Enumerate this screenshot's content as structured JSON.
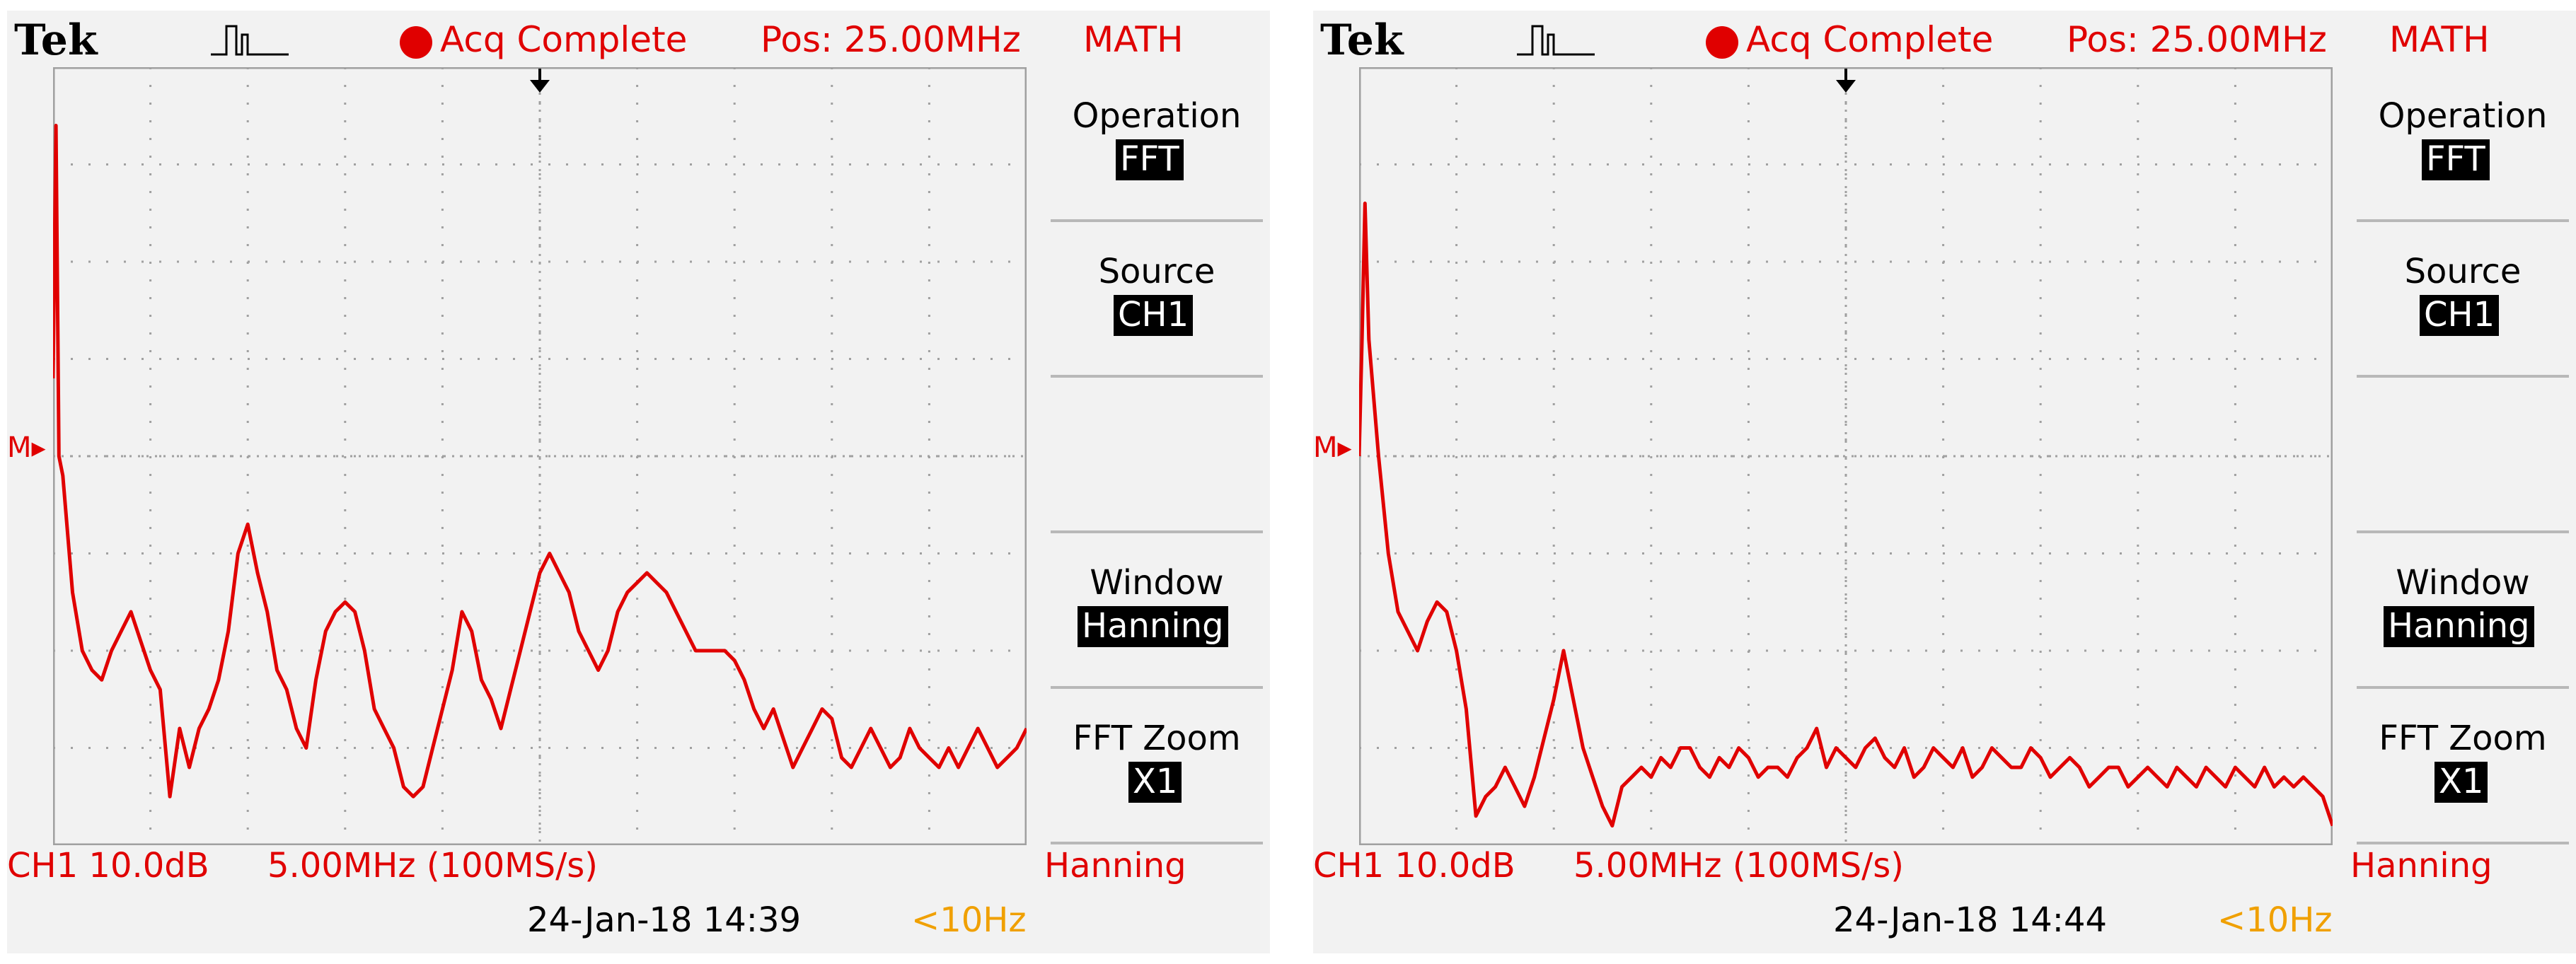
{
  "screens": [
    {
      "brand": "Tek",
      "status": "Acq Complete",
      "position": "Pos: 25.00MHz",
      "menu_title": "MATH",
      "ref_marker": "M",
      "channel_scale": "CH1 10.0dB",
      "timebase": "5.00MHz (100MS/s)",
      "window_label": "Hanning",
      "datetime": "24-Jan-18 14:39",
      "trigger_freq": "<10Hz",
      "menu": [
        {
          "label": "Operation",
          "value": "FFT"
        },
        {
          "label": "Source",
          "value": "CH1"
        },
        {
          "label": "Window",
          "value": "Hanning"
        },
        {
          "label": "FFT Zoom",
          "value": "X1"
        }
      ]
    },
    {
      "brand": "Tek",
      "status": "Acq Complete",
      "position": "Pos: 25.00MHz",
      "menu_title": "MATH",
      "ref_marker": "M",
      "channel_scale": "CH1 10.0dB",
      "timebase": "5.00MHz (100MS/s)",
      "window_label": "Hanning",
      "datetime": "24-Jan-18 14:44",
      "trigger_freq": "<10Hz",
      "menu": [
        {
          "label": "Operation",
          "value": "FFT"
        },
        {
          "label": "Source",
          "value": "CH1"
        },
        {
          "label": "Window",
          "value": "Hanning"
        },
        {
          "label": "FFT Zoom",
          "value": "X1"
        }
      ]
    }
  ],
  "colors": {
    "trace": "#e00000",
    "text_status": "#e00000",
    "trigger_freq": "#f0a000",
    "background": "#f2f2f2",
    "grid": "#a0a0a0"
  },
  "icons": [
    "trigger-pulse-icon",
    "record-dot-icon",
    "trigger-position-marker-icon",
    "math-reference-marker-icon"
  ],
  "chart_data": [
    {
      "type": "line",
      "title": "",
      "xlabel": "",
      "ylabel": "",
      "xlim": [
        0,
        50
      ],
      "ylim": [
        -80,
        0
      ],
      "grid": true,
      "series": [
        {
          "x": [
            0,
            0.15,
            0.3,
            0.5,
            1,
            1.5,
            2,
            2.5,
            3,
            3.5,
            4,
            4.5,
            5,
            5.5,
            6,
            6.5,
            7,
            7.5,
            8,
            8.5,
            9,
            9.5,
            10,
            10.5,
            11,
            11.5,
            12,
            12.5,
            13,
            13.5,
            14,
            14.5,
            15,
            15.5,
            16,
            16.5,
            17,
            17.5,
            18,
            18.5,
            19,
            19.5,
            20,
            20.5,
            21,
            21.5,
            22,
            22.5,
            23,
            23.5,
            24,
            24.5,
            25,
            25.5,
            26,
            26.5,
            27,
            27.5,
            28,
            28.5,
            29,
            29.5,
            30,
            30.5,
            31,
            31.5,
            32,
            32.5,
            33,
            33.5,
            34,
            34.5,
            35,
            35.5,
            36,
            36.5,
            37,
            37.5,
            38,
            38.5,
            39,
            39.5,
            40,
            40.5,
            41,
            41.5,
            42,
            42.5,
            43,
            43.5,
            44,
            44.5,
            45,
            45.5,
            46,
            46.5,
            47,
            47.5,
            48,
            48.5,
            49,
            49.5,
            50
          ],
          "y": [
            -32,
            -6,
            -40,
            -42,
            -54,
            -60,
            -62,
            -63,
            -60,
            -58,
            -56,
            -59,
            -62,
            -64,
            -75,
            -68,
            -72,
            -68,
            -66,
            -63,
            -58,
            -50,
            -47,
            -52,
            -56,
            -62,
            -64,
            -68,
            -70,
            -63,
            -58,
            -56,
            -55,
            -56,
            -60,
            -66,
            -68,
            -70,
            -74,
            -75,
            -74,
            -70,
            -66,
            -62,
            -56,
            -58,
            -63,
            -65,
            -68,
            -64,
            -60,
            -56,
            -52,
            -50,
            -52,
            -54,
            -58,
            -60,
            -62,
            -60,
            -56,
            -54,
            -53,
            -52,
            -53,
            -54,
            -56,
            -58,
            -60,
            -60,
            -60,
            -60,
            -61,
            -63,
            -66,
            -68,
            -66,
            -69,
            -72,
            -70,
            -68,
            -66,
            -67,
            -71,
            -72,
            -70,
            -68,
            -70,
            -72,
            -71,
            -68,
            -70,
            -71,
            -72,
            -70,
            -72,
            -70,
            -68,
            -70,
            -72,
            -71,
            -70,
            -68
          ]
        }
      ]
    },
    {
      "type": "line",
      "title": "",
      "xlabel": "",
      "ylabel": "",
      "xlim": [
        0,
        50
      ],
      "ylim": [
        -80,
        0
      ],
      "grid": true,
      "series": [
        {
          "x": [
            0,
            0.15,
            0.3,
            0.5,
            1,
            1.5,
            2,
            2.5,
            3,
            3.5,
            4,
            4.5,
            5,
            5.5,
            6,
            6.5,
            7,
            7.5,
            8,
            8.5,
            9,
            9.5,
            10,
            10.5,
            11,
            11.5,
            12,
            12.5,
            13,
            13.5,
            14,
            14.5,
            15,
            15.5,
            16,
            16.5,
            17,
            17.5,
            18,
            18.5,
            19,
            19.5,
            20,
            20.5,
            21,
            21.5,
            22,
            22.5,
            23,
            23.5,
            24,
            24.5,
            25,
            25.5,
            26,
            26.5,
            27,
            27.5,
            28,
            28.5,
            29,
            29.5,
            30,
            30.5,
            31,
            31.5,
            32,
            32.5,
            33,
            33.5,
            34,
            34.5,
            35,
            35.5,
            36,
            36.5,
            37,
            37.5,
            38,
            38.5,
            39,
            39.5,
            40,
            40.5,
            41,
            41.5,
            42,
            42.5,
            43,
            43.5,
            44,
            44.5,
            45,
            45.5,
            46,
            46.5,
            47,
            47.5,
            48,
            48.5,
            49,
            49.5,
            50
          ],
          "y": [
            -40,
            -28,
            -14,
            -28,
            -40,
            -50,
            -56,
            -58,
            -60,
            -57,
            -55,
            -56,
            -60,
            -66,
            -77,
            -75,
            -74,
            -72,
            -74,
            -76,
            -73,
            -69,
            -65,
            -60,
            -65,
            -70,
            -73,
            -76,
            -78,
            -74,
            -73,
            -72,
            -73,
            -71,
            -72,
            -70,
            -70,
            -72,
            -73,
            -71,
            -72,
            -70,
            -71,
            -73,
            -72,
            -72,
            -73,
            -71,
            -70,
            -68,
            -72,
            -70,
            -71,
            -72,
            -70,
            -69,
            -71,
            -72,
            -70,
            -73,
            -72,
            -70,
            -71,
            -72,
            -70,
            -73,
            -72,
            -70,
            -71,
            -72,
            -72,
            -70,
            -71,
            -73,
            -72,
            -71,
            -72,
            -74,
            -73,
            -72,
            -72,
            -74,
            -73,
            -72,
            -73,
            -74,
            -72,
            -73,
            -74,
            -72,
            -73,
            -74,
            -72,
            -73,
            -74,
            -72,
            -74,
            -73,
            -74,
            -73,
            -74,
            -75,
            -78
          ]
        }
      ]
    }
  ]
}
